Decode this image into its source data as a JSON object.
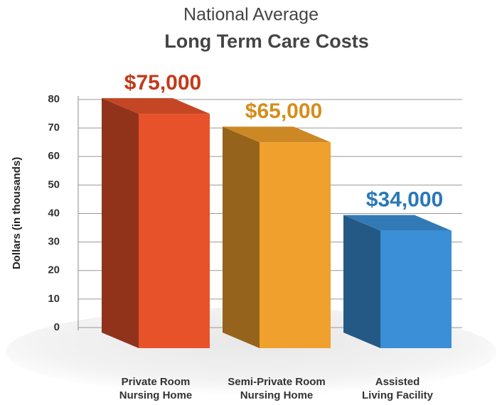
{
  "chart_data": {
    "type": "bar3d",
    "title": "National Average",
    "subtitle": "Long Term Care Costs",
    "y_label": "Dollars (in thousands)",
    "categories": [
      "Private Room\nNursing Home",
      "Semi-Private Room\nNursing Home",
      "Assisted\nLiving Facility"
    ],
    "values": [
      75,
      65,
      34
    ],
    "value_labels": [
      "$75,000",
      "$65,000",
      "$34,000"
    ],
    "colors": [
      "#e8522a",
      "#f0a02c",
      "#3a8fd6"
    ],
    "label_colors": [
      "#c23a1a",
      "#d68d1c",
      "#2a78b8"
    ],
    "ylim": [
      0,
      80
    ],
    "yticks": [
      0,
      10,
      20,
      30,
      40,
      50,
      60,
      70,
      80
    ],
    "grid": true
  }
}
